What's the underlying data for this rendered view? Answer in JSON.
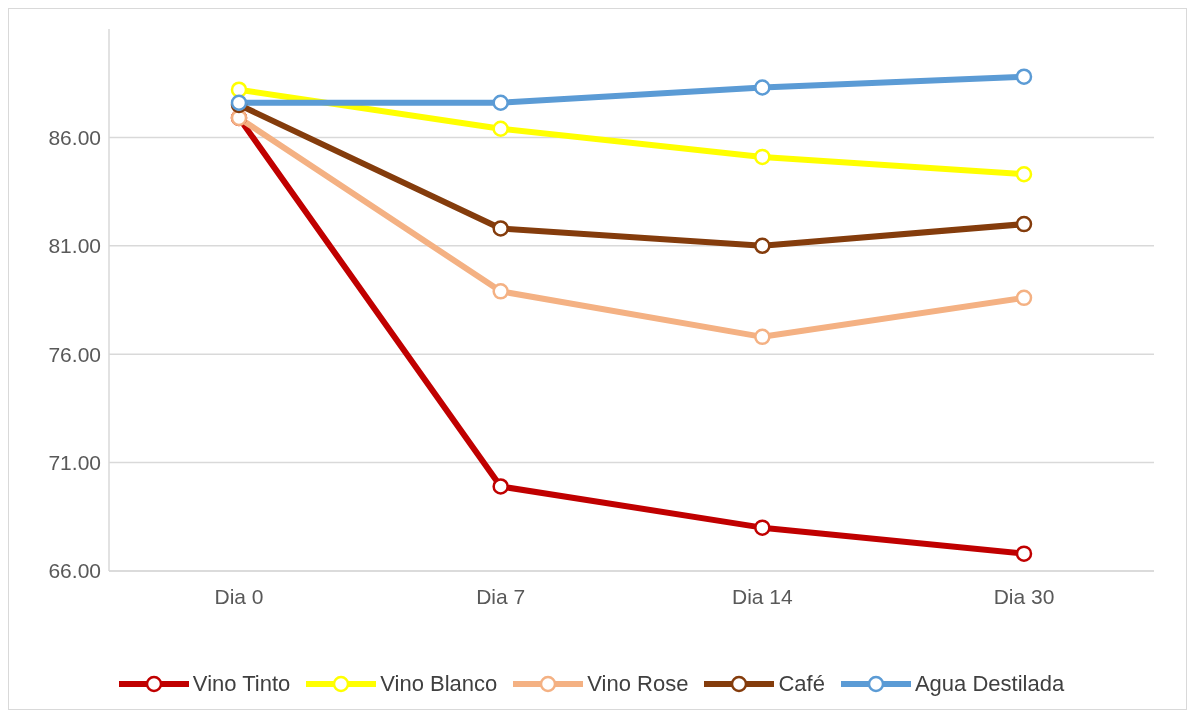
{
  "chart_data": {
    "type": "line",
    "categories": [
      "Dia 0",
      "Dia 7",
      "Dia 14",
      "Dia 30"
    ],
    "series": [
      {
        "name": "Vino Tinto",
        "color": "#c00000",
        "values": [
          86.9,
          69.9,
          68.0,
          66.8
        ]
      },
      {
        "name": "Vino Blanco",
        "color": "#ffff00",
        "values": [
          88.2,
          86.4,
          85.1,
          84.3
        ]
      },
      {
        "name": "Vino Rose",
        "color": "#f4b183",
        "values": [
          86.9,
          78.9,
          76.8,
          78.6
        ]
      },
      {
        "name": "Café",
        "color": "#843c0c",
        "values": [
          87.5,
          81.8,
          81.0,
          82.0
        ]
      },
      {
        "name": "Agua Destilada",
        "color": "#5b9bd5",
        "values": [
          87.6,
          87.6,
          88.3,
          88.8
        ]
      }
    ],
    "yticks": [
      {
        "value": 66,
        "label": "66.00"
      },
      {
        "value": 71,
        "label": "71.00"
      },
      {
        "value": 76,
        "label": "76.00"
      },
      {
        "value": 81,
        "label": "81.00"
      },
      {
        "value": 86,
        "label": "86.00"
      }
    ],
    "ylim": [
      66,
      91
    ],
    "grid": "y",
    "legend": "bottom",
    "marker": "circle",
    "line_style": "solid"
  }
}
